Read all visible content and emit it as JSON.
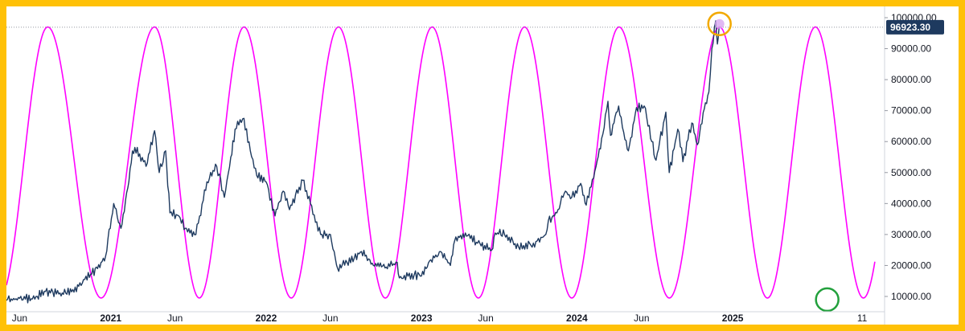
{
  "colors": {
    "border": "#ffc107",
    "price_line": "#1e3a5f",
    "cycle_line": "#ff00ff",
    "top_marker": "#f2a900",
    "bottom_marker": "#22a03c",
    "price_tag_bg": "#1e3a5f",
    "grid": "#e0e3eb"
  },
  "chart_data": {
    "type": "line",
    "title": "",
    "xlabel": "",
    "ylabel": "",
    "ylim": [
      5000,
      100000
    ],
    "x_range": [
      "2020-05-01",
      "2025-12-20"
    ],
    "y_ticks": [
      {
        "value": 100000,
        "label": "100000.00"
      },
      {
        "value": 90000,
        "label": "90000.00"
      },
      {
        "value": 80000,
        "label": "80000.00"
      },
      {
        "value": 70000,
        "label": "70000.00"
      },
      {
        "value": 60000,
        "label": "60000.00"
      },
      {
        "value": 50000,
        "label": "50000.00"
      },
      {
        "value": 40000,
        "label": "40000.00"
      },
      {
        "value": 30000,
        "label": "30000.00"
      },
      {
        "value": 20000,
        "label": "20000.00"
      },
      {
        "value": 10000,
        "label": "10000.00"
      }
    ],
    "x_ticks": [
      {
        "date": "2020-06-01",
        "label": "Jun",
        "bold": false
      },
      {
        "date": "2021-01-01",
        "label": "2021",
        "bold": true
      },
      {
        "date": "2021-06-01",
        "label": "Jun",
        "bold": false
      },
      {
        "date": "2022-01-01",
        "label": "2022",
        "bold": true
      },
      {
        "date": "2022-06-01",
        "label": "Jun",
        "bold": false
      },
      {
        "date": "2023-01-01",
        "label": "2023",
        "bold": true
      },
      {
        "date": "2023-06-01",
        "label": "Jun",
        "bold": false
      },
      {
        "date": "2024-01-01",
        "label": "2024",
        "bold": true
      },
      {
        "date": "2024-06-01",
        "label": "Jun",
        "bold": false
      },
      {
        "date": "2025-01-01",
        "label": "2025",
        "bold": true
      },
      {
        "date": "2025-11-01",
        "label": "11",
        "bold": false
      }
    ],
    "last_price": {
      "value": 96923.3,
      "label": "96923.30"
    },
    "series": [
      {
        "type": "line",
        "points": [
          [
            "2020-05-01",
            8700
          ],
          [
            "2020-06-01",
            9400
          ],
          [
            "2020-07-01",
            9200
          ],
          [
            "2020-08-01",
            11600
          ],
          [
            "2020-09-01",
            10800
          ],
          [
            "2020-10-01",
            11500
          ],
          [
            "2020-11-01",
            15500
          ],
          [
            "2020-12-01",
            19000
          ],
          [
            "2020-12-20",
            23000
          ],
          [
            "2021-01-08",
            40000
          ],
          [
            "2021-01-25",
            32000
          ],
          [
            "2021-02-10",
            45000
          ],
          [
            "2021-02-21",
            57000
          ],
          [
            "2021-03-10",
            56000
          ],
          [
            "2021-03-25",
            52000
          ],
          [
            "2021-04-14",
            63500
          ],
          [
            "2021-04-25",
            50000
          ],
          [
            "2021-05-10",
            57000
          ],
          [
            "2021-05-20",
            37000
          ],
          [
            "2021-06-10",
            36000
          ],
          [
            "2021-06-25",
            32000
          ],
          [
            "2021-07-20",
            30000
          ],
          [
            "2021-08-15",
            47000
          ],
          [
            "2021-09-07",
            52000
          ],
          [
            "2021-09-25",
            42000
          ],
          [
            "2021-10-10",
            55000
          ],
          [
            "2021-10-20",
            64000
          ],
          [
            "2021-11-10",
            67500
          ],
          [
            "2021-11-25",
            57000
          ],
          [
            "2021-12-10",
            49000
          ],
          [
            "2022-01-01",
            47000
          ],
          [
            "2022-01-22",
            36000
          ],
          [
            "2022-02-10",
            44000
          ],
          [
            "2022-02-25",
            38000
          ],
          [
            "2022-03-28",
            47500
          ],
          [
            "2022-04-15",
            40000
          ],
          [
            "2022-05-09",
            30000
          ],
          [
            "2022-06-01",
            30000
          ],
          [
            "2022-06-13",
            22000
          ],
          [
            "2022-06-18",
            19000
          ],
          [
            "2022-07-10",
            21000
          ],
          [
            "2022-08-13",
            24500
          ],
          [
            "2022-09-10",
            20000
          ],
          [
            "2022-10-10",
            19500
          ],
          [
            "2022-11-05",
            21000
          ],
          [
            "2022-11-10",
            16000
          ],
          [
            "2022-12-15",
            17000
          ],
          [
            "2023-01-01",
            16600
          ],
          [
            "2023-01-20",
            21500
          ],
          [
            "2023-02-15",
            24500
          ],
          [
            "2023-03-10",
            20000
          ],
          [
            "2023-03-20",
            28000
          ],
          [
            "2023-04-14",
            30500
          ],
          [
            "2023-05-10",
            27500
          ],
          [
            "2023-06-15",
            25000
          ],
          [
            "2023-06-23",
            30500
          ],
          [
            "2023-07-15",
            30000
          ],
          [
            "2023-08-17",
            26000
          ],
          [
            "2023-09-15",
            26500
          ],
          [
            "2023-10-20",
            30000
          ],
          [
            "2023-10-26",
            34500
          ],
          [
            "2023-11-15",
            37000
          ],
          [
            "2023-12-05",
            44000
          ],
          [
            "2023-12-20",
            42000
          ],
          [
            "2024-01-10",
            46500
          ],
          [
            "2024-01-23",
            39500
          ],
          [
            "2024-02-15",
            52000
          ],
          [
            "2024-02-28",
            61000
          ],
          [
            "2024-03-14",
            73000
          ],
          [
            "2024-03-20",
            62000
          ],
          [
            "2024-04-08",
            71500
          ],
          [
            "2024-04-20",
            63000
          ],
          [
            "2024-05-01",
            57000
          ],
          [
            "2024-05-20",
            71000
          ],
          [
            "2024-06-07",
            71500
          ],
          [
            "2024-06-25",
            60000
          ],
          [
            "2024-07-05",
            54000
          ],
          [
            "2024-07-28",
            69500
          ],
          [
            "2024-08-05",
            50000
          ],
          [
            "2024-08-25",
            64000
          ],
          [
            "2024-09-06",
            53500
          ],
          [
            "2024-09-27",
            66000
          ],
          [
            "2024-10-10",
            59000
          ],
          [
            "2024-10-29",
            72500
          ],
          [
            "2024-11-06",
            76000
          ],
          [
            "2024-11-13",
            90000
          ],
          [
            "2024-11-22",
            99000
          ],
          [
            "2024-11-26",
            91500
          ],
          [
            "2024-11-30",
            96923
          ]
        ]
      },
      {
        "type": "sine",
        "peaks": [
          "2020-08-06",
          "2021-04-14",
          "2021-11-10",
          "2022-06-20",
          "2023-01-26",
          "2023-08-31",
          "2024-04-09",
          "2024-12-01"
        ],
        "high": 97000,
        "low": 9500,
        "end": "2025-12-01"
      }
    ],
    "annotations": [
      {
        "type": "circle",
        "date": "2024-12-01",
        "value": 98000,
        "color": "top_marker"
      },
      {
        "type": "circle",
        "date": "2025-08-11",
        "value": 9500,
        "color": "bottom_marker"
      }
    ]
  }
}
